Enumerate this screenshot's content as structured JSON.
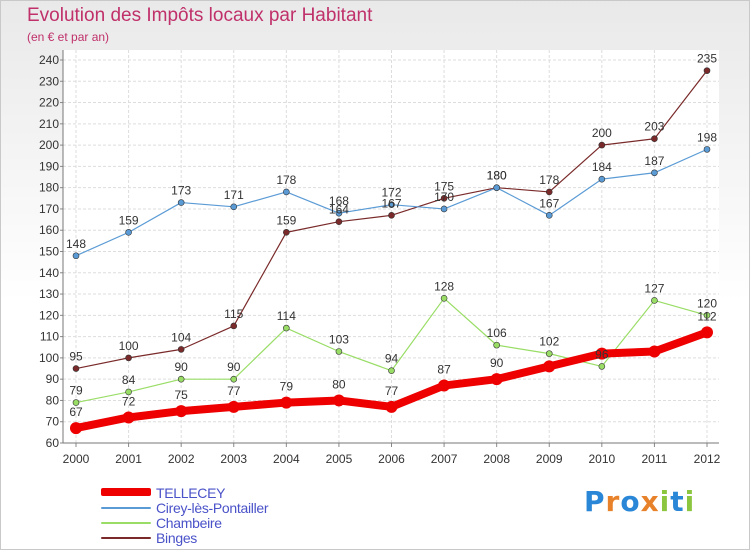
{
  "title": "Evolution des Impôts locaux par Habitant",
  "subtitle": "(en € et par an)",
  "logo": {
    "text": "Proxiti",
    "letters": [
      {
        "ch": "P",
        "color": "#2a86d6"
      },
      {
        "ch": "r",
        "color": "#e8822a"
      },
      {
        "ch": "o",
        "color": "#2a86d6"
      },
      {
        "ch": "x",
        "color": "#e8822a"
      },
      {
        "ch": "i",
        "color": "#8cc63f"
      },
      {
        "ch": "t",
        "color": "#2a86d6"
      },
      {
        "ch": "i",
        "color": "#8cc63f"
      }
    ]
  },
  "chart_data": {
    "type": "line",
    "title": "Evolution des Impôts locaux par Habitant",
    "subtitle": "(en € et par an)",
    "x": [
      "2000",
      "2001",
      "2002",
      "2003",
      "2004",
      "2005",
      "2006",
      "2007",
      "2008",
      "2009",
      "2010",
      "2011",
      "2012"
    ],
    "ylim": [
      60,
      240
    ],
    "yticks": [
      60,
      70,
      80,
      90,
      100,
      110,
      120,
      130,
      140,
      150,
      160,
      170,
      180,
      190,
      200,
      210,
      220,
      230,
      240
    ],
    "grid": true,
    "legend_position": "bottom-left",
    "series": [
      {
        "name": "TELLECEY",
        "color": "#ee0000",
        "line_width": 8,
        "marker_radius": 6,
        "values": [
          67,
          72,
          75,
          77,
          79,
          80,
          77,
          87,
          90,
          96,
          102,
          103,
          112
        ],
        "labels": [
          "67",
          "72",
          "75",
          "77",
          "79",
          "80",
          "77",
          "87",
          "90",
          "",
          "",
          "",
          "112"
        ]
      },
      {
        "name": "Cirey-lès-Pontailler",
        "color": "#5b9bd5",
        "line_width": 1.2,
        "marker_radius": 3,
        "values": [
          148,
          159,
          173,
          171,
          178,
          168,
          172,
          170,
          180,
          167,
          184,
          187,
          198
        ],
        "labels": [
          "148",
          "159",
          "173",
          "171",
          "178",
          "168",
          "172",
          "170",
          "180",
          "167",
          "184",
          "187",
          "198"
        ]
      },
      {
        "name": "Chambeire",
        "color": "#99dd66",
        "line_width": 1.2,
        "marker_radius": 3,
        "values": [
          79,
          84,
          90,
          90,
          114,
          103,
          94,
          128,
          106,
          102,
          96,
          127,
          120
        ],
        "labels": [
          "79",
          "84",
          "90",
          "90",
          "114",
          "103",
          "94",
          "128",
          "106",
          "102",
          "96",
          "127",
          "120"
        ]
      },
      {
        "name": "Binges",
        "color": "#7a2a2a",
        "line_width": 1.2,
        "marker_radius": 3,
        "values": [
          95,
          100,
          104,
          115,
          159,
          164,
          167,
          175,
          180,
          178,
          200,
          203,
          235
        ],
        "labels": [
          "95",
          "100",
          "104",
          "115",
          "159",
          "164",
          "167",
          "175",
          "180",
          "178",
          "200",
          "203",
          "235"
        ]
      }
    ]
  }
}
